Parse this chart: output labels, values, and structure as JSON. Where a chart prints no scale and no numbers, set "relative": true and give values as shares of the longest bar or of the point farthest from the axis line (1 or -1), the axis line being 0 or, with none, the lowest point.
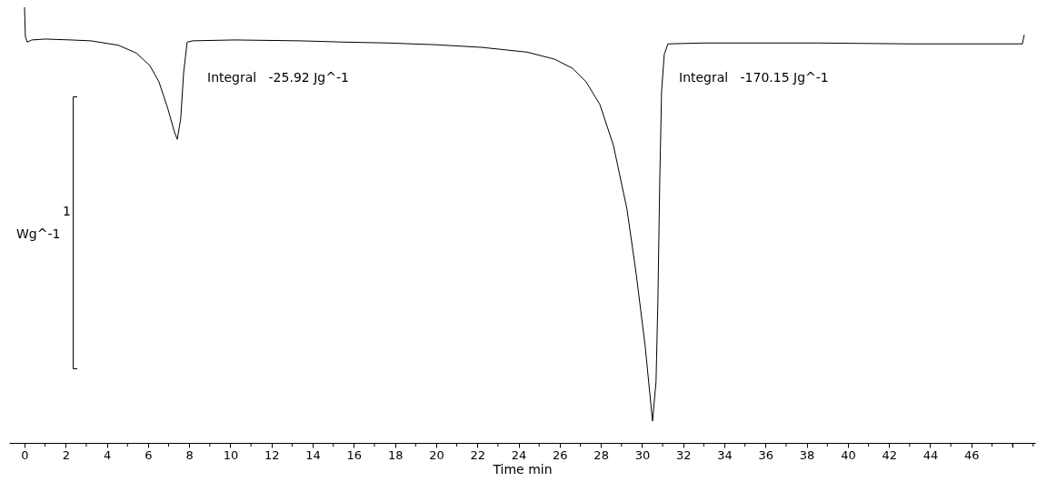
{
  "chart_data": {
    "type": "line",
    "xlabel": "Time min",
    "relative": true,
    "xlim": [
      -0.75,
      49.1
    ],
    "xticks": [
      0,
      {
        "value": 1,
        "label": null
      },
      2,
      {
        "value": 3,
        "label": null
      },
      4,
      {
        "value": 5,
        "label": null
      },
      6,
      {
        "value": 7,
        "label": null
      },
      8,
      {
        "value": 9,
        "label": null
      },
      10,
      {
        "value": 11,
        "label": null
      },
      12,
      {
        "value": 13,
        "label": null
      },
      14,
      {
        "value": 15,
        "label": null
      },
      16,
      {
        "value": 17,
        "label": null
      },
      18,
      {
        "value": 19,
        "label": null
      },
      20,
      {
        "value": 21,
        "label": null
      },
      22,
      {
        "value": 23,
        "label": null
      },
      24,
      {
        "value": 25,
        "label": null
      },
      26,
      {
        "value": 27,
        "label": null
      },
      28,
      {
        "value": 29,
        "label": null
      },
      30,
      {
        "value": 31,
        "label": null
      },
      32,
      {
        "value": 33,
        "label": null
      },
      34,
      {
        "value": 35,
        "label": null
      },
      36,
      {
        "value": 37,
        "label": null
      },
      38,
      {
        "value": 39,
        "label": null
      },
      40,
      {
        "value": 41,
        "label": null
      },
      42,
      {
        "value": 43,
        "label": null
      },
      44,
      {
        "value": 45,
        "label": null
      },
      46,
      {
        "value": 47,
        "label": null
      },
      {
        "value": 48,
        "label": null
      },
      {
        "value": 49,
        "label": null
      }
    ],
    "x": [
      0,
      0.04,
      0.13,
      0.35,
      1.02,
      2.25,
      3.22,
      4.55,
      5.43,
      6.09,
      6.53,
      6.97,
      7.28,
      7.42,
      7.59,
      7.73,
      7.9,
      8.17,
      10.2,
      13.38,
      15.58,
      17.66,
      20.0,
      22.21,
      24.42,
      25.74,
      26.62,
      27.28,
      27.95,
      28.61,
      29.27,
      29.71,
      30.15,
      30.51,
      30.68,
      30.77,
      30.86,
      30.95,
      31.08,
      31.26,
      33.02,
      38.54,
      42.96,
      48.48,
      48.57
    ],
    "series": [
      {
        "color": "#000000",
        "values": [
          1.0,
          0.933,
          0.92,
          0.925,
          0.927,
          0.925,
          0.923,
          0.913,
          0.895,
          0.866,
          0.829,
          0.766,
          0.714,
          0.697,
          0.745,
          0.85,
          0.92,
          0.923,
          0.925,
          0.923,
          0.92,
          0.918,
          0.914,
          0.908,
          0.897,
          0.881,
          0.86,
          0.829,
          0.777,
          0.683,
          0.536,
          0.39,
          0.223,
          0.05,
          0.14,
          0.327,
          0.599,
          0.808,
          0.892,
          0.916,
          0.918,
          0.918,
          0.916,
          0.916,
          0.937
        ]
      }
    ],
    "annotations": [
      "Integral   -25.92 Jg^-1",
      "Integral   -170.15 Jg^-1",
      "1",
      "Wg^-1"
    ]
  }
}
